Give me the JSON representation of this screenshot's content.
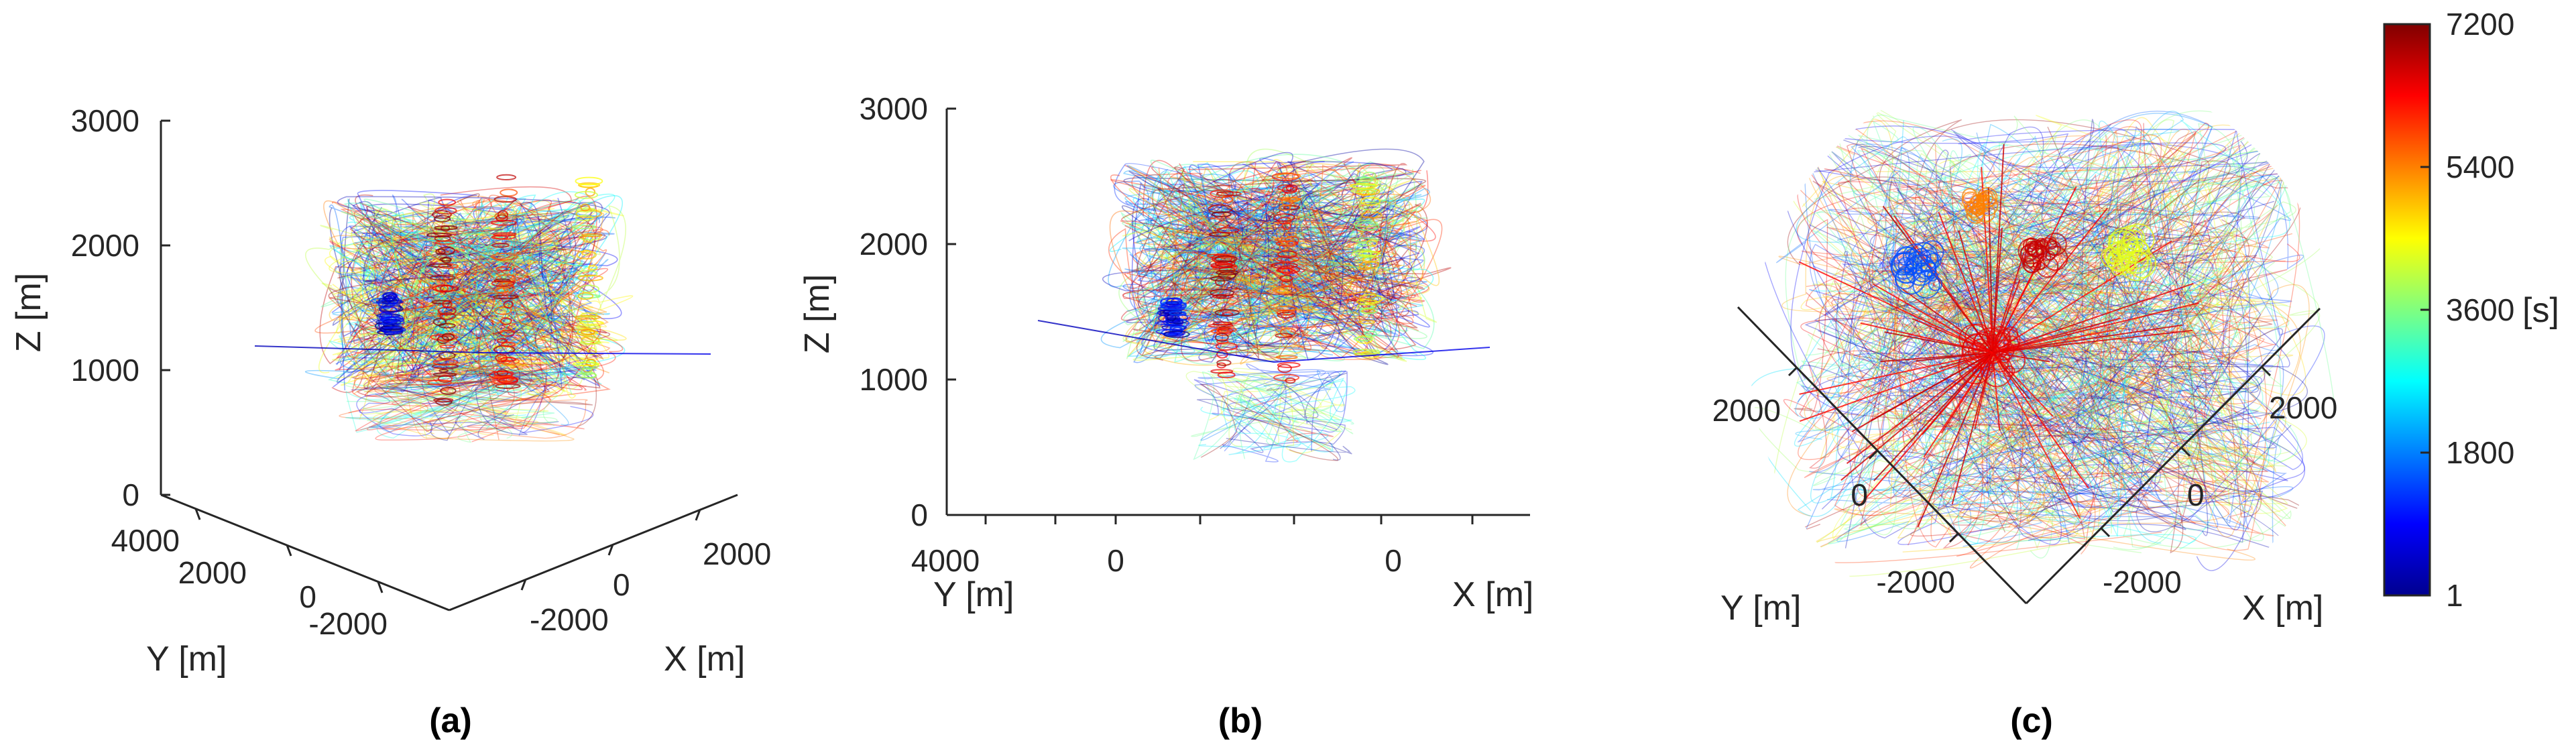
{
  "chart_data": [
    {
      "type": "line",
      "panel_label": "(a)",
      "view": "3d-oblique",
      "zlabel": "Z [m]",
      "ylabel": "Y [m]",
      "xlabel": "X [m]",
      "zticks": [
        "0",
        "1000",
        "2000",
        "3000"
      ],
      "yticks": [
        "4000",
        "2000",
        "0",
        "-2000"
      ],
      "xticks": [
        "-2000",
        "0",
        "2000"
      ],
      "zlim": [
        0,
        3000
      ],
      "trajectory_altitude_range": [
        400,
        2600
      ],
      "color_encoding": "time [s], jet colormap 1–7200",
      "clusters": [
        {
          "color_time": 7000,
          "z_top": 2300
        },
        {
          "color_time": 6600,
          "z_top": 2600
        },
        {
          "color_time": 4400,
          "z_top": 2600
        },
        {
          "color_time": 600,
          "z_top": 1500
        }
      ]
    },
    {
      "type": "line",
      "panel_label": "(b)",
      "view": "3d-side",
      "zlabel": "Z [m]",
      "ylabel": "Y [m]",
      "xlabel": "X [m]",
      "zticks": [
        "0",
        "1000",
        "2000",
        "3000"
      ],
      "yticks": [
        "4000",
        "0"
      ],
      "xticks": [
        "0"
      ],
      "zlim": [
        0,
        3000
      ]
    },
    {
      "type": "line",
      "panel_label": "(c)",
      "view": "3d-top",
      "ylabel": "Y [m]",
      "xlabel": "X [m]",
      "yticks": [
        "2000",
        "0",
        "-2000"
      ],
      "xticks": [
        "2000",
        "0",
        "-2000"
      ]
    }
  ],
  "colorbar": {
    "unit_label": "[s]",
    "min": 1,
    "max": 7200,
    "ticks": [
      "7200",
      "5400",
      "3600",
      "1800",
      "1"
    ],
    "tick_values": [
      7200,
      5400,
      3600,
      1800,
      1
    ],
    "colormap": "jet",
    "stops": [
      "#00008f",
      "#0000ff",
      "#00ffff",
      "#ffff00",
      "#ff0000",
      "#800000"
    ]
  }
}
